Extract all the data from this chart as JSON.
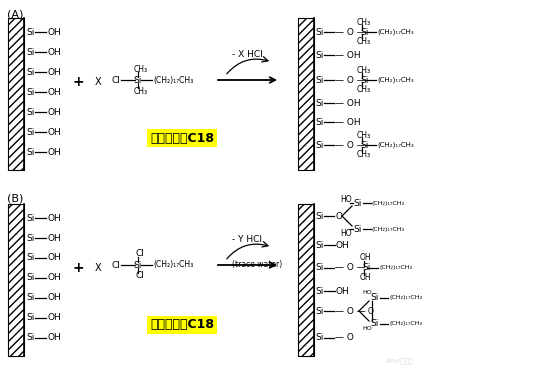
{
  "bg_color": "#ffffff",
  "label_A": "(A)",
  "label_B": "(B)",
  "mono_label": "单功能键合C18",
  "poly_label": "多功能键合C18",
  "mono_bg": "#ffff00",
  "poly_bg": "#ffff00",
  "minus_x_hcl": "- X HCl",
  "minus_y_hcl": "- Y HCl",
  "trace_water": "(trace water)",
  "fig_width": 5.5,
  "fig_height": 3.72,
  "dpi": 100
}
